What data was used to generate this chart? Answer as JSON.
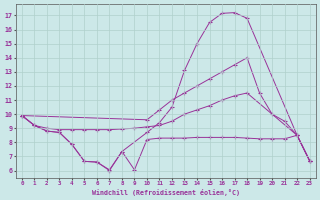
{
  "xlabel": "Windchill (Refroidissement éolien,°C)",
  "background_color": "#cce8e8",
  "grid_color": "#b0d0cc",
  "line_color": "#993399",
  "xlim": [
    -0.5,
    23.5
  ],
  "ylim": [
    5.5,
    17.8
  ],
  "xticks": [
    0,
    1,
    2,
    3,
    4,
    5,
    6,
    7,
    8,
    9,
    10,
    11,
    12,
    13,
    14,
    15,
    16,
    17,
    18,
    19,
    20,
    21,
    22,
    23
  ],
  "yticks": [
    6,
    7,
    8,
    9,
    10,
    11,
    12,
    13,
    14,
    15,
    16,
    17
  ],
  "line_big_peak_x": [
    0,
    1,
    2,
    3,
    4,
    5,
    6,
    7,
    8,
    10,
    11,
    12,
    13,
    14,
    15,
    16,
    17,
    18,
    22,
    23
  ],
  "line_big_peak_y": [
    9.9,
    9.2,
    8.8,
    8.7,
    7.85,
    6.65,
    6.6,
    6.0,
    7.35,
    8.7,
    9.4,
    10.5,
    13.1,
    15.0,
    16.5,
    17.15,
    17.2,
    16.8,
    8.5,
    6.7
  ],
  "line_bottom_flat_x": [
    0,
    1,
    2,
    3,
    4,
    5,
    6,
    7,
    8,
    9,
    10,
    11,
    12,
    13,
    14,
    15,
    16,
    17,
    18,
    19,
    20,
    21,
    22,
    23
  ],
  "line_bottom_flat_y": [
    9.9,
    9.2,
    8.8,
    8.7,
    7.85,
    6.65,
    6.6,
    6.05,
    7.35,
    6.05,
    8.2,
    8.3,
    8.3,
    8.3,
    8.35,
    8.35,
    8.35,
    8.35,
    8.3,
    8.25,
    8.25,
    8.25,
    8.5,
    6.7
  ],
  "line_mid_rise_x": [
    0,
    1,
    2,
    3,
    4,
    5,
    6,
    7,
    8,
    9,
    10,
    11,
    12,
    13,
    14,
    15,
    16,
    17,
    18,
    22,
    23
  ],
  "line_mid_rise_y": [
    9.9,
    9.2,
    9.0,
    8.9,
    8.9,
    8.9,
    8.9,
    8.9,
    8.95,
    9.0,
    9.1,
    9.2,
    9.5,
    10.0,
    10.3,
    10.6,
    11.0,
    11.3,
    11.5,
    8.5,
    6.7
  ],
  "line_top_rise_x": [
    0,
    10,
    11,
    12,
    13,
    14,
    15,
    16,
    17,
    18,
    19,
    20,
    21,
    22,
    23
  ],
  "line_top_rise_y": [
    9.9,
    9.6,
    10.3,
    11.0,
    11.5,
    12.0,
    12.5,
    13.0,
    13.5,
    14.0,
    11.5,
    10.0,
    9.5,
    8.5,
    6.7
  ]
}
